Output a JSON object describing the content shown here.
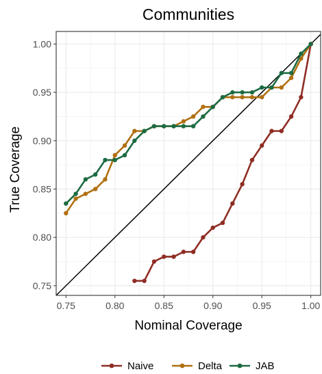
{
  "chart_data": {
    "type": "line",
    "title": "Communities",
    "xlabel": "Nominal Coverage",
    "ylabel": "True Coverage",
    "xlim": [
      0.74,
      1.01
    ],
    "ylim": [
      0.74,
      1.013
    ],
    "x_ticks": [
      "0.75",
      "0.80",
      "0.85",
      "0.90",
      "0.95",
      "1.00"
    ],
    "y_ticks": [
      "0.75",
      "0.80",
      "0.85",
      "0.90",
      "0.95",
      "1.00"
    ],
    "grid": true,
    "reference_line": "y = x",
    "legend_position": "bottom",
    "series": [
      {
        "name": "Naive",
        "color": "#8f2d24",
        "x": [
          0.82,
          0.83,
          0.84,
          0.85,
          0.86,
          0.87,
          0.88,
          0.89,
          0.9,
          0.91,
          0.92,
          0.93,
          0.94,
          0.95,
          0.96,
          0.97,
          0.98,
          0.99,
          1.0
        ],
        "y": [
          0.755,
          0.755,
          0.775,
          0.78,
          0.78,
          0.785,
          0.785,
          0.8,
          0.81,
          0.815,
          0.835,
          0.855,
          0.88,
          0.895,
          0.91,
          0.91,
          0.925,
          0.945,
          1.0
        ]
      },
      {
        "name": "Delta",
        "color": "#b07012",
        "x": [
          0.75,
          0.76,
          0.77,
          0.78,
          0.79,
          0.8,
          0.81,
          0.82,
          0.83,
          0.84,
          0.85,
          0.86,
          0.87,
          0.88,
          0.89,
          0.9,
          0.91,
          0.92,
          0.93,
          0.94,
          0.95,
          0.96,
          0.97,
          0.98,
          0.99,
          1.0
        ],
        "y": [
          0.825,
          0.84,
          0.845,
          0.85,
          0.86,
          0.885,
          0.895,
          0.91,
          0.91,
          0.915,
          0.915,
          0.915,
          0.92,
          0.925,
          0.935,
          0.935,
          0.945,
          0.945,
          0.945,
          0.945,
          0.945,
          0.955,
          0.955,
          0.965,
          0.985,
          1.0
        ]
      },
      {
        "name": "JAB",
        "color": "#1d6b42",
        "x": [
          0.75,
          0.76,
          0.77,
          0.78,
          0.79,
          0.8,
          0.81,
          0.82,
          0.83,
          0.84,
          0.85,
          0.86,
          0.87,
          0.88,
          0.89,
          0.9,
          0.91,
          0.92,
          0.93,
          0.94,
          0.95,
          0.96,
          0.97,
          0.98,
          0.99,
          1.0
        ],
        "y": [
          0.835,
          0.845,
          0.86,
          0.865,
          0.88,
          0.88,
          0.885,
          0.9,
          0.91,
          0.915,
          0.915,
          0.915,
          0.915,
          0.915,
          0.925,
          0.935,
          0.945,
          0.95,
          0.95,
          0.95,
          0.955,
          0.955,
          0.97,
          0.97,
          0.99,
          1.0
        ]
      }
    ]
  }
}
